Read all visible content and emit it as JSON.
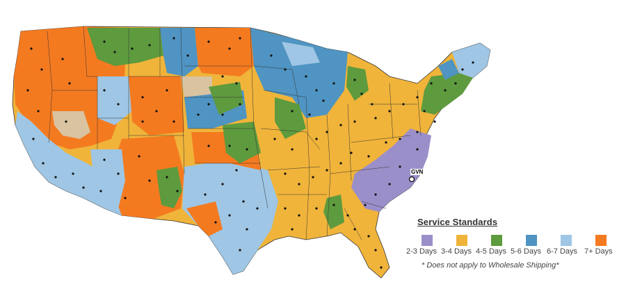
{
  "map": {
    "origin_label": "GVN",
    "colors": {
      "2-3": "#9b8fc9",
      "3-4": "#f0b43a",
      "4-5": "#5e9a3e",
      "5-6": "#4f94c2",
      "6-7": "#9fc6e4",
      "7+": "#f47a20",
      "na": "#d9c3a1"
    }
  },
  "legend": {
    "title": "Service Standards",
    "items": [
      {
        "key": "2-3",
        "label": "2-3 Days",
        "color": "#9b8fc9"
      },
      {
        "key": "3-4",
        "label": "3-4 Days",
        "color": "#f0b43a"
      },
      {
        "key": "4-5",
        "label": "4-5 Days",
        "color": "#5e9a3e"
      },
      {
        "key": "5-6",
        "label": "5-6 Days",
        "color": "#4f94c2"
      },
      {
        "key": "6-7",
        "label": "6-7 Days",
        "color": "#9fc6e4"
      },
      {
        "key": "7+",
        "label": "7+ Days",
        "color": "#f47a20"
      }
    ],
    "note": "* Does not apply to Wholesale Shipping*"
  }
}
